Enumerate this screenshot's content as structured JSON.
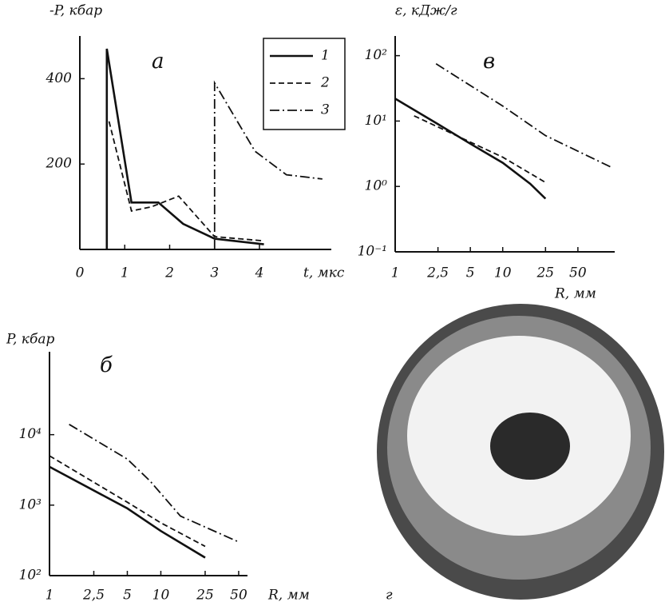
{
  "chart_data": [
    {
      "type": "line",
      "panel_label": "а",
      "y_label": "-P, кбар",
      "x_label": "t, мкс",
      "xlim": [
        0,
        5.6
      ],
      "ylim": [
        0,
        500
      ],
      "xticks": [
        0,
        1,
        2,
        3,
        4
      ],
      "yticks": [
        200,
        400
      ],
      "legend": "upper right",
      "series": [
        {
          "name": "1",
          "color": "#111111",
          "dash": "solid",
          "x": [
            0.6,
            0.6,
            1.15,
            1.75,
            2.3,
            3,
            4.1
          ],
          "values": [
            0,
            470,
            110,
            110,
            60,
            25,
            12
          ]
        },
        {
          "name": "2",
          "color": "#111111",
          "dash": "dashed",
          "x": [
            0.65,
            1.15,
            1.6,
            2.2,
            3,
            4.1
          ],
          "values": [
            300,
            90,
            100,
            125,
            30,
            20
          ]
        },
        {
          "name": "3",
          "color": "#111111",
          "dash": "dashdot",
          "x": [
            3,
            3,
            3.9,
            4.6,
            5.4
          ],
          "values": [
            0,
            390,
            230,
            175,
            165
          ]
        }
      ]
    },
    {
      "type": "line",
      "panel_label": "в",
      "y_label": "ε, кДж/г",
      "x_label": "R, мм",
      "xscale": "log",
      "yscale": "log",
      "xlim": [
        1,
        110
      ],
      "ylim": [
        0.1,
        200
      ],
      "xticks": [
        1,
        {
          "value": 2.5,
          "label": "2,5"
        },
        5,
        10,
        25,
        50
      ],
      "yticks": [
        {
          "value": 0.1,
          "label": "10⁻¹"
        },
        {
          "value": 1,
          "label": "10⁰"
        },
        {
          "value": 10,
          "label": "10¹"
        },
        {
          "value": 100,
          "label": "10²"
        }
      ],
      "series": [
        {
          "name": "1",
          "color": "#111111",
          "dash": "solid",
          "x": [
            1,
            2.5,
            5,
            10,
            18,
            25
          ],
          "values": [
            22,
            9,
            4.5,
            2.3,
            1.1,
            0.65
          ]
        },
        {
          "name": "2",
          "color": "#111111",
          "dash": "dashed",
          "x": [
            1.5,
            10,
            25
          ],
          "values": [
            12,
            2.8,
            1.15
          ]
        },
        {
          "name": "3",
          "color": "#111111",
          "dash": "dashdot",
          "x": [
            2.4,
            10,
            25,
            100
          ],
          "values": [
            75,
            17,
            6,
            2
          ]
        }
      ]
    },
    {
      "type": "line",
      "panel_label": "б",
      "y_label": "P, кбар",
      "x_label": "R, мм",
      "xscale": "log",
      "yscale": "log",
      "xlim": [
        1,
        60
      ],
      "ylim": [
        100,
        150000
      ],
      "xticks": [
        1,
        {
          "value": 2.5,
          "label": "2,5"
        },
        5,
        10,
        25,
        50
      ],
      "yticks": [
        {
          "value": 100,
          "label": "10²"
        },
        {
          "value": 1000,
          "label": "10³"
        },
        {
          "value": 10000,
          "label": "10⁴"
        }
      ],
      "series": [
        {
          "name": "1",
          "color": "#111111",
          "dash": "solid",
          "x": [
            1,
            5,
            10,
            25
          ],
          "values": [
            3500,
            900,
            430,
            180
          ]
        },
        {
          "name": "2",
          "color": "#111111",
          "dash": "dashed",
          "x": [
            1,
            5,
            10,
            25
          ],
          "values": [
            5000,
            1100,
            560,
            260
          ]
        },
        {
          "name": "3",
          "color": "#111111",
          "dash": "dashdot",
          "x": [
            1.5,
            5,
            8,
            15,
            50
          ],
          "values": [
            14000,
            4500,
            2200,
            700,
            300
          ]
        }
      ]
    }
  ],
  "photo": {
    "label": "г"
  }
}
